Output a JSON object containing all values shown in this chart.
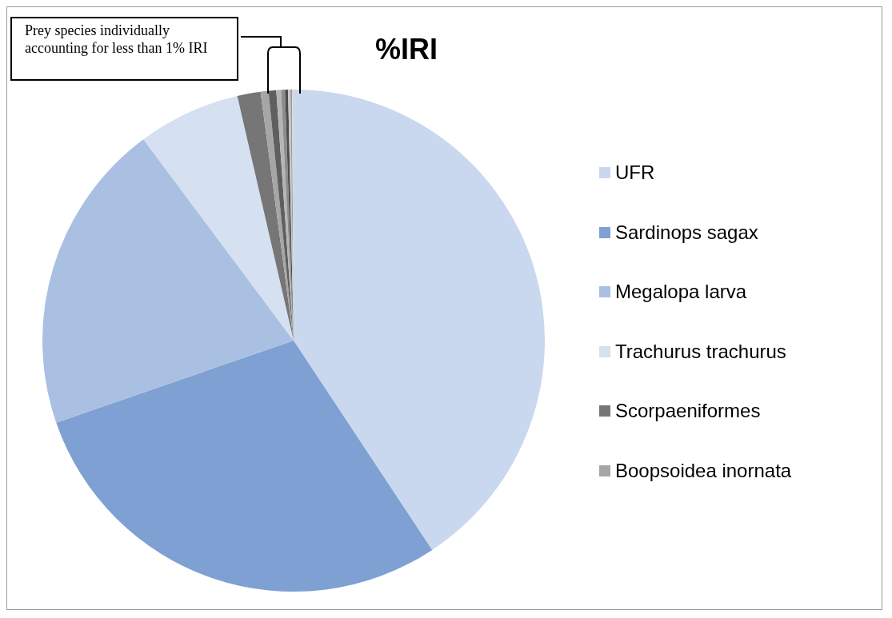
{
  "chart_data": {
    "type": "pie",
    "title": "%IRI",
    "categories": [
      "UFR",
      "Sardinops sagax",
      "Megalopa larva",
      "Trachurus trachurus",
      "Scorpaeniformes",
      "Boopsoidea inornata",
      null,
      null,
      null,
      null,
      null,
      null,
      null
    ],
    "values": [
      40.7,
      29.0,
      20.1,
      6.6,
      1.5,
      0.5,
      0.5,
      0.3,
      0.25,
      0.2,
      0.15,
      0.1,
      0.1
    ],
    "colors": [
      "#c9d8ee",
      "#7fa0d2",
      "#a9c0e2",
      "#d5e0f1",
      "#767676",
      "#a6a6a6",
      "#5f5f5f",
      "#b5b5b5",
      "#8c8c8c",
      "#4d4d4d",
      "#c8c8c8",
      "#9a9a9a",
      "#d9d9d9"
    ],
    "legend": "right",
    "annotations": [
      "Prey species individually accounting for less than 1% IRI"
    ]
  }
}
